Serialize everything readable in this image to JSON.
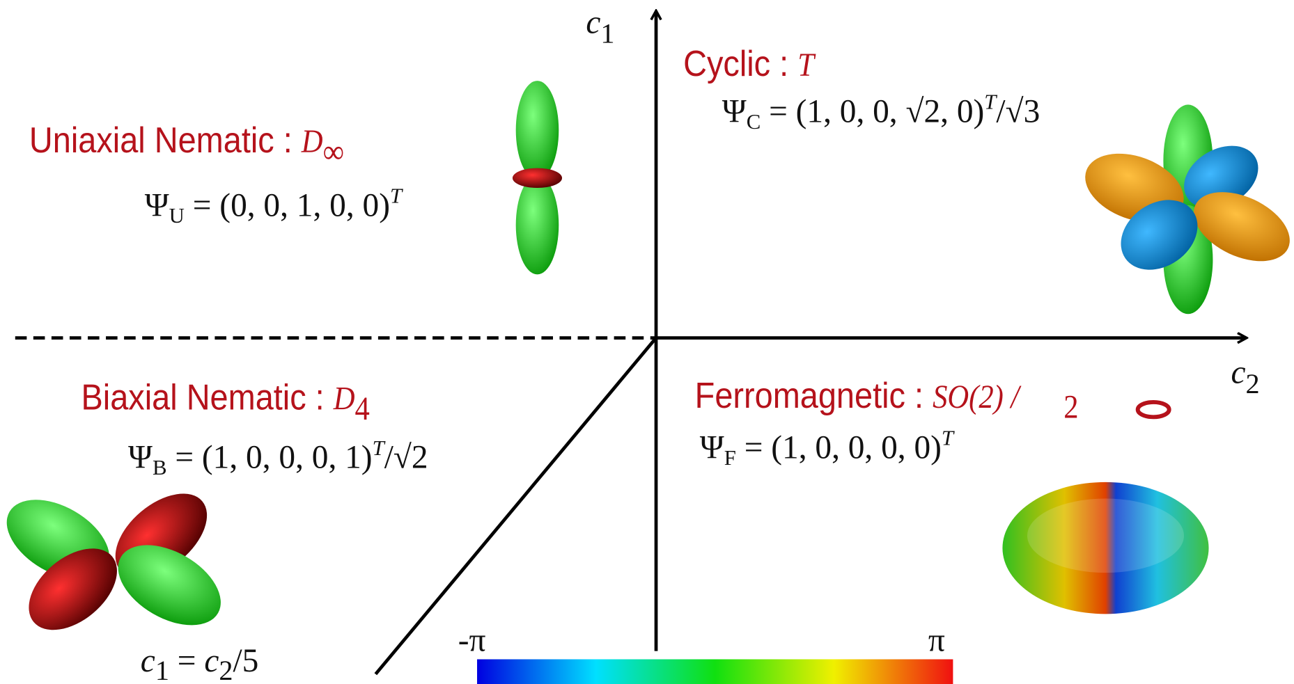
{
  "axes": {
    "vertical": {
      "base": "c",
      "sub": "1"
    },
    "horizontal": {
      "base": "c",
      "sub": "2"
    },
    "boundary": {
      "lhs_base": "c",
      "lhs_sub": "1",
      "eq": " = ",
      "rhs_base": "c",
      "rhs_sub": "2",
      "rhs_tail": "/5"
    }
  },
  "phases": [
    {
      "name": "Cyclic : ",
      "symmetry": "T",
      "state": "Ψ",
      "state_sub": "C",
      "state_body": " = (1, 0, 0, √2, 0)",
      "state_sup": "T",
      "state_tail": "/√3"
    },
    {
      "name": "Uniaxial Nematic : ",
      "symmetry": "D",
      "symmetry_sub": "∞",
      "state": "Ψ",
      "state_sub": "U",
      "state_body": " = (0, 0, 1, 0, 0)",
      "state_sup": "T"
    },
    {
      "name": "Biaxial Nematic : ",
      "symmetry": "D",
      "symmetry_sub": "4",
      "state": "Ψ",
      "state_sub": "B",
      "state_body": " = (1, 0, 0, 0, 1)",
      "state_sup": "T",
      "state_tail": "/√2"
    },
    {
      "name": "Ferromagnetic : ",
      "symmetry": "SO(2)  /",
      "symmetry_sub": "2",
      "state": "Ψ",
      "state_sub": "F",
      "state_body": " = (1, 0, 0, 0, 0)",
      "state_sup": "T"
    }
  ],
  "colorbar": {
    "min_label": "-π",
    "max_label": "π"
  }
}
